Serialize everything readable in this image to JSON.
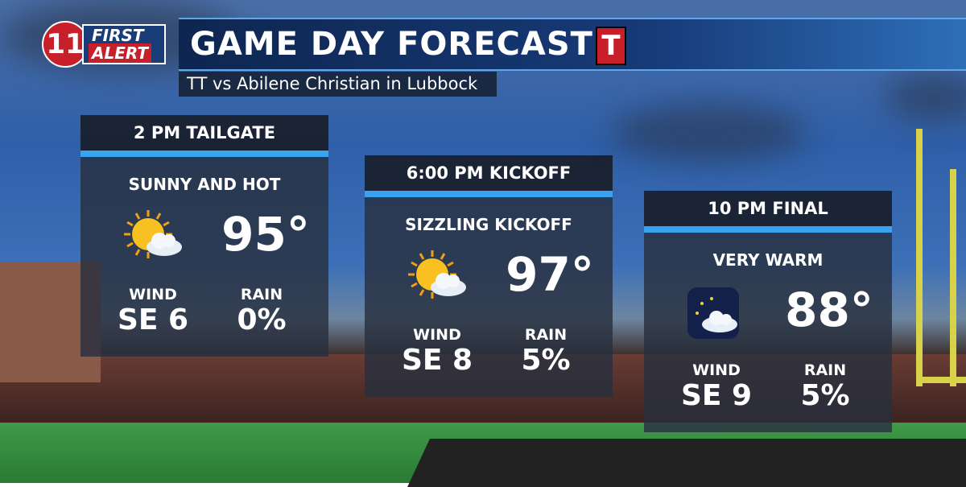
{
  "header": {
    "logo_number": "11",
    "logo_top": "FIRST",
    "logo_bottom": "ALERT",
    "title": "GAME DAY FORECAST",
    "team_logo": "T",
    "subtitle": "TT vs Abilene Christian in Lubbock"
  },
  "panels": [
    {
      "time": "2 PM  TAILGATE",
      "condition": "SUNNY AND HOT",
      "icon": "sun",
      "temp": "95°",
      "wind_label": "WIND",
      "wind": "SE 6",
      "rain_label": "RAIN",
      "rain": "0%"
    },
    {
      "time": "6:00 PM KICKOFF",
      "condition": "SIZZLING KICKOFF",
      "icon": "sun",
      "temp": "97°",
      "wind_label": "WIND",
      "wind": "SE 8",
      "rain_label": "RAIN",
      "rain": "5%"
    },
    {
      "time": "10 PM FINAL",
      "condition": "VERY WARM",
      "icon": "moon",
      "temp": "88°",
      "wind_label": "WIND",
      "wind": "SE 9",
      "rain_label": "RAIN",
      "rain": "5%"
    }
  ]
}
